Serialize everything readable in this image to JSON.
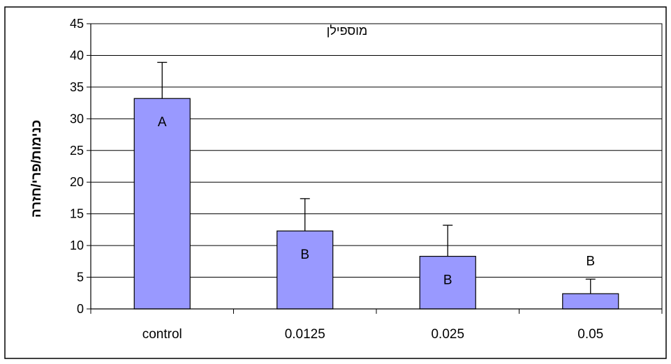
{
  "chart_data": {
    "type": "bar",
    "title": "מוספילן",
    "xlabel": "",
    "ylabel": "כנימות/פרי/חזרה",
    "ylim": [
      0,
      45
    ],
    "yticks": [
      "0",
      "5",
      "10",
      "15",
      "20",
      "25",
      "30",
      "35",
      "40",
      "45"
    ],
    "grid": true,
    "legend": "none",
    "categories": [
      "control",
      "0.0125",
      "0.025",
      "0.05"
    ],
    "values": [
      33.2,
      12.3,
      8.3,
      2.4
    ],
    "errors": [
      5.7,
      5.1,
      4.9,
      2.3
    ],
    "labels": [
      "A",
      "B",
      "B",
      "B"
    ],
    "colors": {
      "bar_fill": "#9999ff",
      "bar_stroke": "#000000",
      "grid": "#000000",
      "frame": "#000000"
    }
  }
}
